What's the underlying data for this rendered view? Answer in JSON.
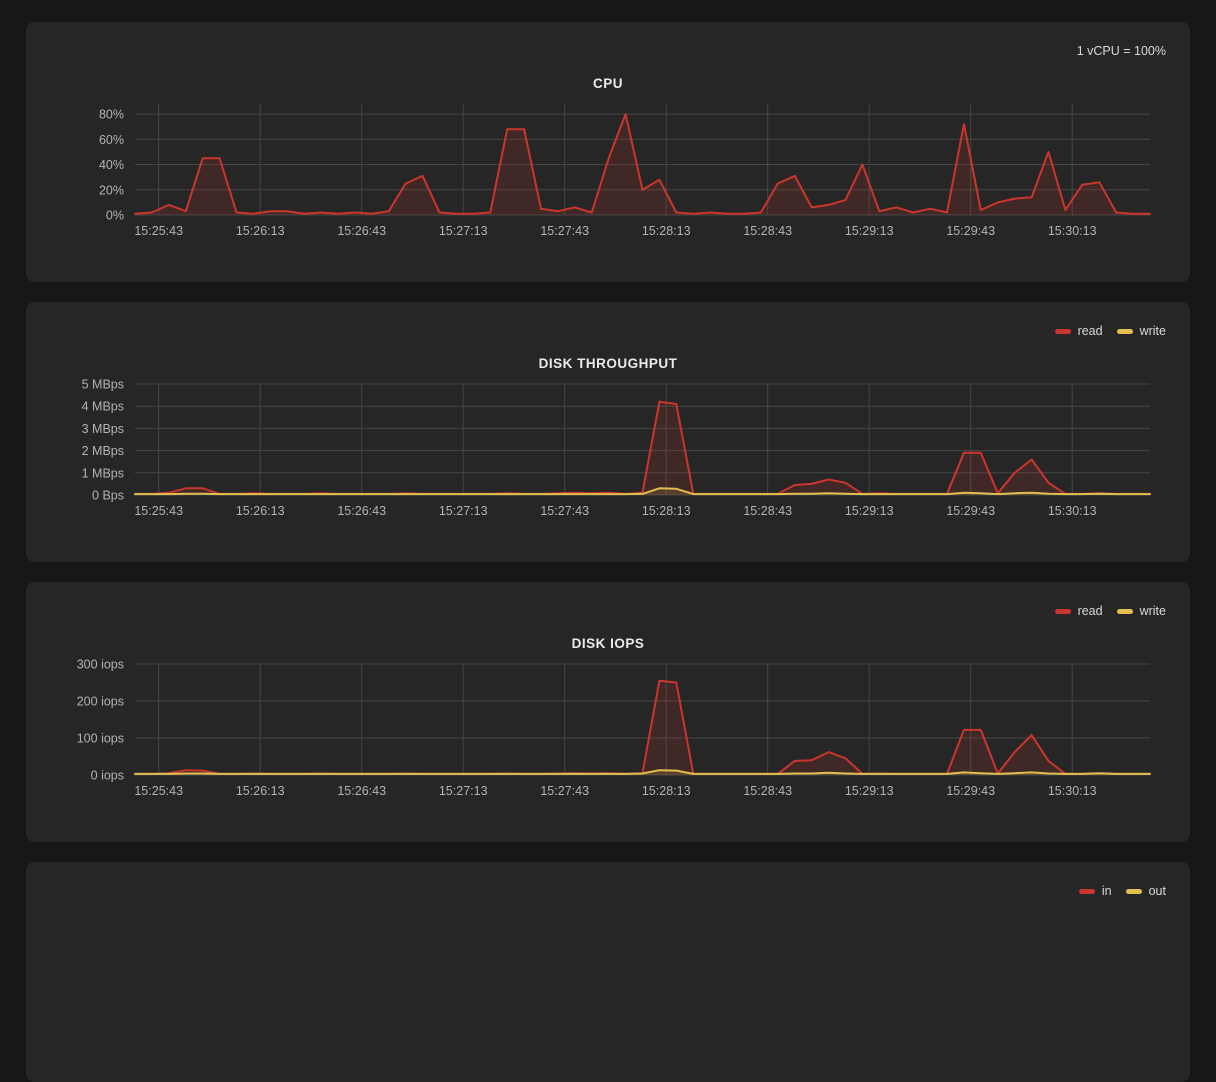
{
  "chart_data": [
    {
      "type": "area",
      "title": "CPU",
      "note": "1 vCPU = 100%",
      "legend": [],
      "legend_position": "top-right",
      "grid": true,
      "ymax": 88,
      "y_ticks": [
        {
          "label": "80%",
          "value": 80
        },
        {
          "label": "60%",
          "value": 60
        },
        {
          "label": "40%",
          "value": 40
        },
        {
          "label": "20%",
          "value": 20
        },
        {
          "label": "0%",
          "value": 0
        }
      ],
      "x_ticks": [
        "15:25:43",
        "15:26:13",
        "15:26:43",
        "15:27:13",
        "15:27:43",
        "15:28:13",
        "15:28:43",
        "15:29:13",
        "15:29:43",
        "15:30:13"
      ],
      "series": [
        {
          "name": "cpu",
          "color": "#cb362c",
          "fill": "rgba(203,54,44,0.16)",
          "values": [
            1,
            2,
            8,
            3,
            45,
            45,
            2,
            1,
            3,
            3,
            1,
            2,
            1,
            2,
            1,
            3,
            25,
            31,
            2,
            1,
            1,
            2,
            68,
            68,
            5,
            3,
            6,
            2,
            45,
            80,
            20,
            28,
            2,
            1,
            2,
            1,
            1,
            2,
            25,
            31,
            6,
            8,
            12,
            40,
            3,
            6,
            2,
            5,
            2,
            72,
            4,
            10,
            13,
            14,
            50,
            4,
            24,
            26,
            2,
            1,
            1
          ]
        }
      ]
    },
    {
      "type": "area",
      "title": "DISK THROUGHPUT",
      "legend": [
        {
          "label": "read",
          "color": "#cb362c"
        },
        {
          "label": "write",
          "color": "#e0bf50"
        }
      ],
      "legend_position": "top-right",
      "grid": true,
      "ymax": 5,
      "y_ticks": [
        {
          "label": "5 MBps",
          "value": 5
        },
        {
          "label": "4 MBps",
          "value": 4
        },
        {
          "label": "3 MBps",
          "value": 3
        },
        {
          "label": "2 MBps",
          "value": 2
        },
        {
          "label": "1 MBps",
          "value": 1
        },
        {
          "label": "0 Bps",
          "value": 0
        }
      ],
      "x_ticks": [
        "15:25:43",
        "15:26:13",
        "15:26:43",
        "15:27:13",
        "15:27:43",
        "15:28:13",
        "15:28:43",
        "15:29:13",
        "15:29:43",
        "15:30:13"
      ],
      "series": [
        {
          "name": "read",
          "color": "#cb362c",
          "fill": "rgba(203,54,44,0.16)",
          "values": [
            0.05,
            0.05,
            0.1,
            0.3,
            0.3,
            0.05,
            0.05,
            0.08,
            0.05,
            0.05,
            0.05,
            0.08,
            0.05,
            0.05,
            0.05,
            0.05,
            0.08,
            0.05,
            0.05,
            0.05,
            0.05,
            0.05,
            0.08,
            0.05,
            0.05,
            0.08,
            0.1,
            0.08,
            0.1,
            0.05,
            0.1,
            4.2,
            4.1,
            0.05,
            0.05,
            0.05,
            0.05,
            0.05,
            0.05,
            0.45,
            0.5,
            0.7,
            0.55,
            0.05,
            0.08,
            0.05,
            0.05,
            0.05,
            0.05,
            1.9,
            1.9,
            0.08,
            1.0,
            1.6,
            0.55,
            0.05,
            0.05,
            0.08,
            0.05,
            0.05,
            0.05
          ]
        },
        {
          "name": "write",
          "color": "#e0bf50",
          "fill": "rgba(224,191,80,0.14)",
          "values": [
            0.04,
            0.04,
            0.04,
            0.06,
            0.06,
            0.04,
            0.04,
            0.04,
            0.04,
            0.04,
            0.04,
            0.04,
            0.04,
            0.04,
            0.04,
            0.04,
            0.04,
            0.04,
            0.04,
            0.04,
            0.04,
            0.04,
            0.04,
            0.04,
            0.04,
            0.04,
            0.04,
            0.04,
            0.04,
            0.04,
            0.05,
            0.3,
            0.28,
            0.04,
            0.04,
            0.04,
            0.04,
            0.04,
            0.04,
            0.06,
            0.06,
            0.08,
            0.06,
            0.04,
            0.04,
            0.04,
            0.04,
            0.04,
            0.04,
            0.1,
            0.08,
            0.04,
            0.08,
            0.1,
            0.06,
            0.04,
            0.04,
            0.06,
            0.04,
            0.04,
            0.04
          ]
        }
      ]
    },
    {
      "type": "area",
      "title": "DISK IOPS",
      "legend": [
        {
          "label": "read",
          "color": "#cb362c"
        },
        {
          "label": "write",
          "color": "#e0bf50"
        }
      ],
      "legend_position": "top-right",
      "grid": true,
      "ymax": 300,
      "y_ticks": [
        {
          "label": "300 iops",
          "value": 300
        },
        {
          "label": "200 iops",
          "value": 200
        },
        {
          "label": "100 iops",
          "value": 100
        },
        {
          "label": "0 iops",
          "value": 0
        }
      ],
      "x_ticks": [
        "15:25:43",
        "15:26:13",
        "15:26:43",
        "15:27:13",
        "15:27:43",
        "15:28:13",
        "15:28:43",
        "15:29:13",
        "15:29:43",
        "15:30:13"
      ],
      "series": [
        {
          "name": "read",
          "color": "#cb362c",
          "fill": "rgba(203,54,44,0.16)",
          "values": [
            3,
            3,
            5,
            13,
            12,
            3,
            3,
            4,
            3,
            3,
            3,
            4,
            3,
            3,
            3,
            3,
            4,
            3,
            3,
            3,
            3,
            3,
            4,
            3,
            3,
            4,
            5,
            4,
            5,
            3,
            5,
            255,
            250,
            3,
            3,
            3,
            3,
            3,
            3,
            38,
            40,
            62,
            45,
            3,
            4,
            3,
            3,
            3,
            3,
            122,
            122,
            4,
            62,
            108,
            38,
            3,
            3,
            4,
            3,
            3,
            3
          ]
        },
        {
          "name": "write",
          "color": "#e0bf50",
          "fill": "rgba(224,191,80,0.14)",
          "values": [
            3,
            3,
            3,
            4,
            4,
            3,
            3,
            3,
            3,
            3,
            3,
            3,
            3,
            3,
            3,
            3,
            3,
            3,
            3,
            3,
            3,
            3,
            3,
            3,
            3,
            3,
            3,
            3,
            3,
            3,
            4,
            13,
            12,
            3,
            3,
            3,
            3,
            3,
            3,
            4,
            4,
            6,
            4,
            3,
            3,
            3,
            3,
            3,
            3,
            7,
            5,
            3,
            5,
            7,
            4,
            3,
            3,
            5,
            3,
            3,
            3
          ]
        }
      ]
    },
    {
      "type": "area",
      "title": "",
      "legend": [
        {
          "label": "in",
          "color": "#cb362c"
        },
        {
          "label": "out",
          "color": "#e0bf50"
        }
      ],
      "legend_position": "top-right"
    }
  ],
  "style": {
    "page_bg": "#171717",
    "panel_bg": "#262626",
    "grid_color": "#464646",
    "axis_label_color": "#b3b3b3",
    "title_color": "#ebebeb",
    "read_color": "#cb362c",
    "write_color": "#e0bf50"
  }
}
